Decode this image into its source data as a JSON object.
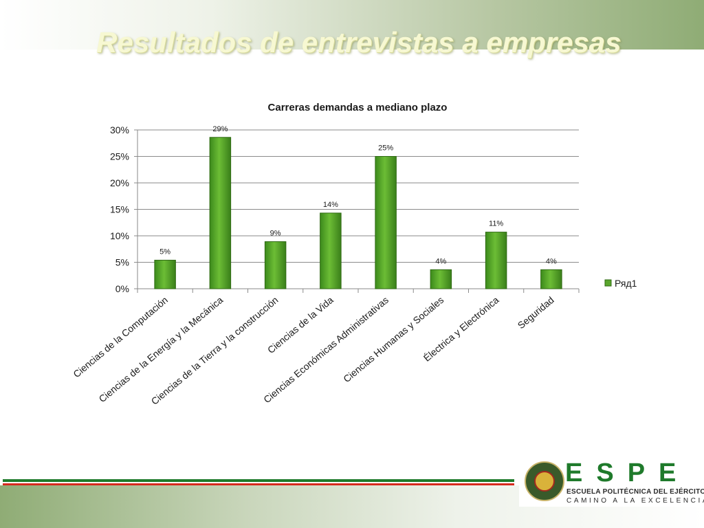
{
  "slide": {
    "title": "Resultados de entrevistas a empresas"
  },
  "colors": {
    "bar_fill": "#5aa52c",
    "bar_edge": "#2f6a13",
    "gridline": "#8a8a8a",
    "title_color": "#f7f8d2",
    "stripe_green": "#1e7a2a",
    "stripe_red": "#d62a1e"
  },
  "chart_data": {
    "type": "bar",
    "title": "Carreras demandas a mediano plazo",
    "xlabel": "",
    "ylabel": "",
    "categories": [
      "Ciencias de la Computación",
      "Ciencias de la Energía y la Mecánica",
      "Ciencias de la Tierra y la construcción",
      "Ciencias de la Vida",
      "Ciencias Económicas Administrativas",
      "Ciencias Humanas y Sociales",
      "Électrica y Electrónica",
      "Seguridad"
    ],
    "series": [
      {
        "name": "Ряд1",
        "values": [
          0.054,
          0.286,
          0.089,
          0.143,
          0.25,
          0.036,
          0.107,
          0.036
        ],
        "labels": [
          "5%",
          "29%",
          "9%",
          "14%",
          "25%",
          "4%",
          "11%",
          "4%"
        ]
      }
    ],
    "ylim": [
      0,
      0.3
    ],
    "yticks": [
      0,
      0.05,
      0.1,
      0.15,
      0.2,
      0.25,
      0.3
    ],
    "ytick_labels": [
      "0%",
      "5%",
      "10%",
      "15%",
      "20%",
      "25%",
      "30%"
    ],
    "grid": true,
    "legend": "right"
  },
  "logo": {
    "wordmark": "ESPE",
    "school": "ESCUELA POLITÉCNICA DEL EJÉRCITO",
    "tagline": "CAMINO A LA EXCELENCIA"
  }
}
